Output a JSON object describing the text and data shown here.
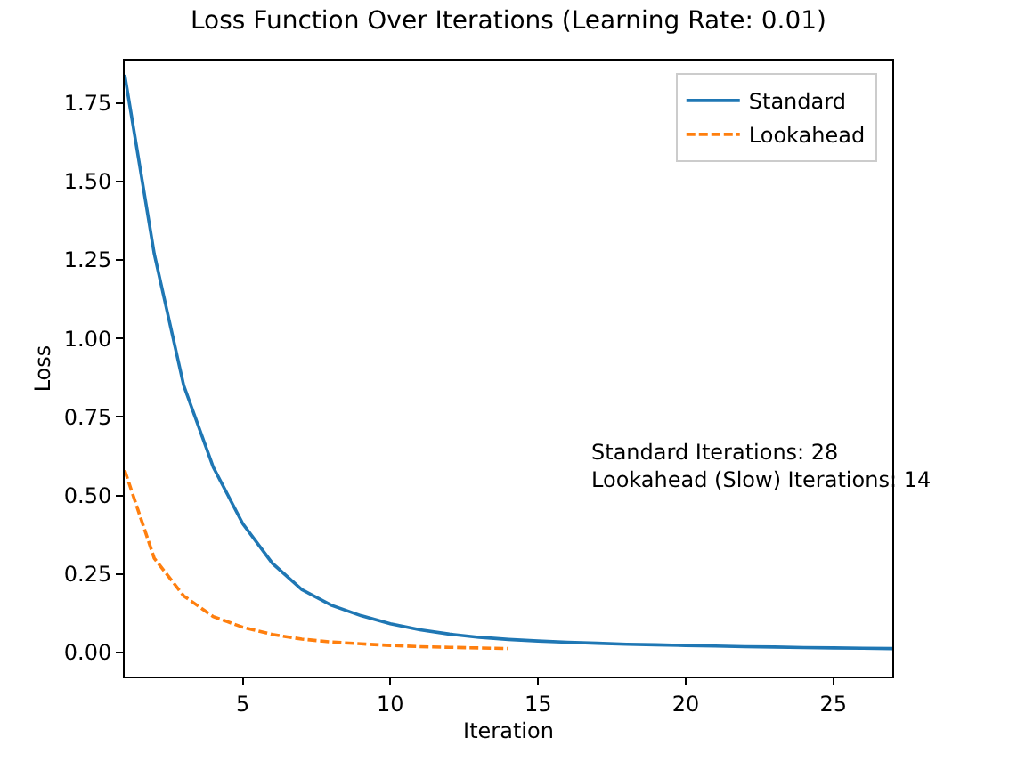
{
  "chart_data": {
    "type": "line",
    "title": "Loss Function Over Iterations (Learning Rate: 0.01)",
    "xlabel": "Iteration",
    "ylabel": "Loss",
    "series": [
      {
        "name": "Standard",
        "color": "#1f77b4",
        "line_style": "solid",
        "x": [
          1,
          2,
          3,
          4,
          5,
          6,
          7,
          8,
          9,
          10,
          11,
          12,
          13,
          14,
          15,
          16,
          17,
          18,
          19,
          20,
          21,
          22,
          23,
          24,
          25,
          26,
          27
        ],
        "values": [
          1.84,
          1.27,
          0.85,
          0.59,
          0.41,
          0.284,
          0.2,
          0.15,
          0.117,
          0.091,
          0.072,
          0.058,
          0.048,
          0.041,
          0.036,
          0.032,
          0.029,
          0.026,
          0.024,
          0.022,
          0.02,
          0.018,
          0.017,
          0.015,
          0.014,
          0.013,
          0.012
        ]
      },
      {
        "name": "Lookahead",
        "color": "#ff7f0e",
        "line_style": "dashed",
        "x": [
          1,
          2,
          3,
          4,
          5,
          6,
          7,
          8,
          9,
          10,
          11,
          12,
          13,
          14
        ],
        "values": [
          0.58,
          0.3,
          0.18,
          0.114,
          0.08,
          0.057,
          0.042,
          0.033,
          0.027,
          0.022,
          0.018,
          0.016,
          0.014,
          0.012
        ]
      }
    ],
    "annotations": [
      "Standard Iterations: 28\nLookahead (Slow) Iterations: 14"
    ],
    "xlim": [
      1,
      27
    ],
    "xticks": [
      5,
      10,
      15,
      20,
      25
    ],
    "ylim": [
      -0.077,
      1.885
    ],
    "yticks": [
      {
        "value": 0,
        "label": "0.00"
      },
      0.25,
      {
        "value": 0.5,
        "label": "0.50"
      },
      0.75,
      {
        "value": 1,
        "label": "1.00"
      },
      1.25,
      {
        "value": 1.5,
        "label": "1.50"
      },
      1.75
    ],
    "grid": false,
    "legend": "top right",
    "marker": "none"
  }
}
